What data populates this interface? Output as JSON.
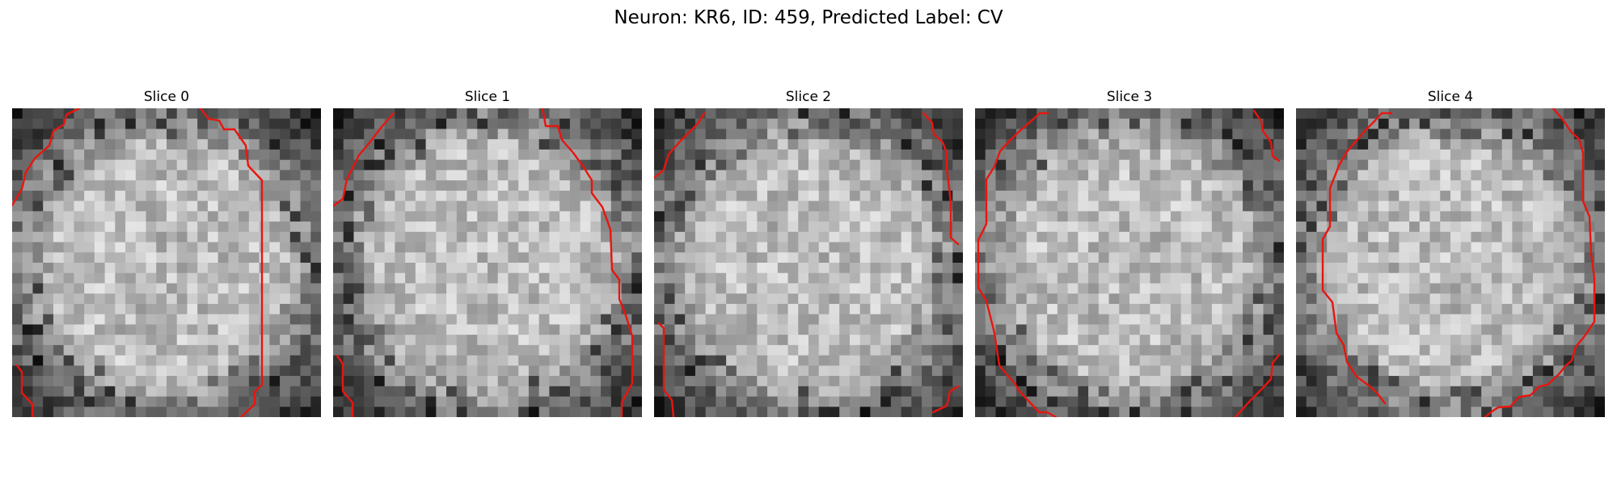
{
  "figure": {
    "title": "Neuron: KR6, ID: 459, Predicted Label: CV"
  },
  "panels": [
    {
      "title": "Slice 0"
    },
    {
      "title": "Slice 1"
    },
    {
      "title": "Slice 2"
    },
    {
      "title": "Slice 3"
    },
    {
      "title": "Slice 4"
    }
  ],
  "style": {
    "contour_color": "#e8150f",
    "colormap": "gray"
  }
}
